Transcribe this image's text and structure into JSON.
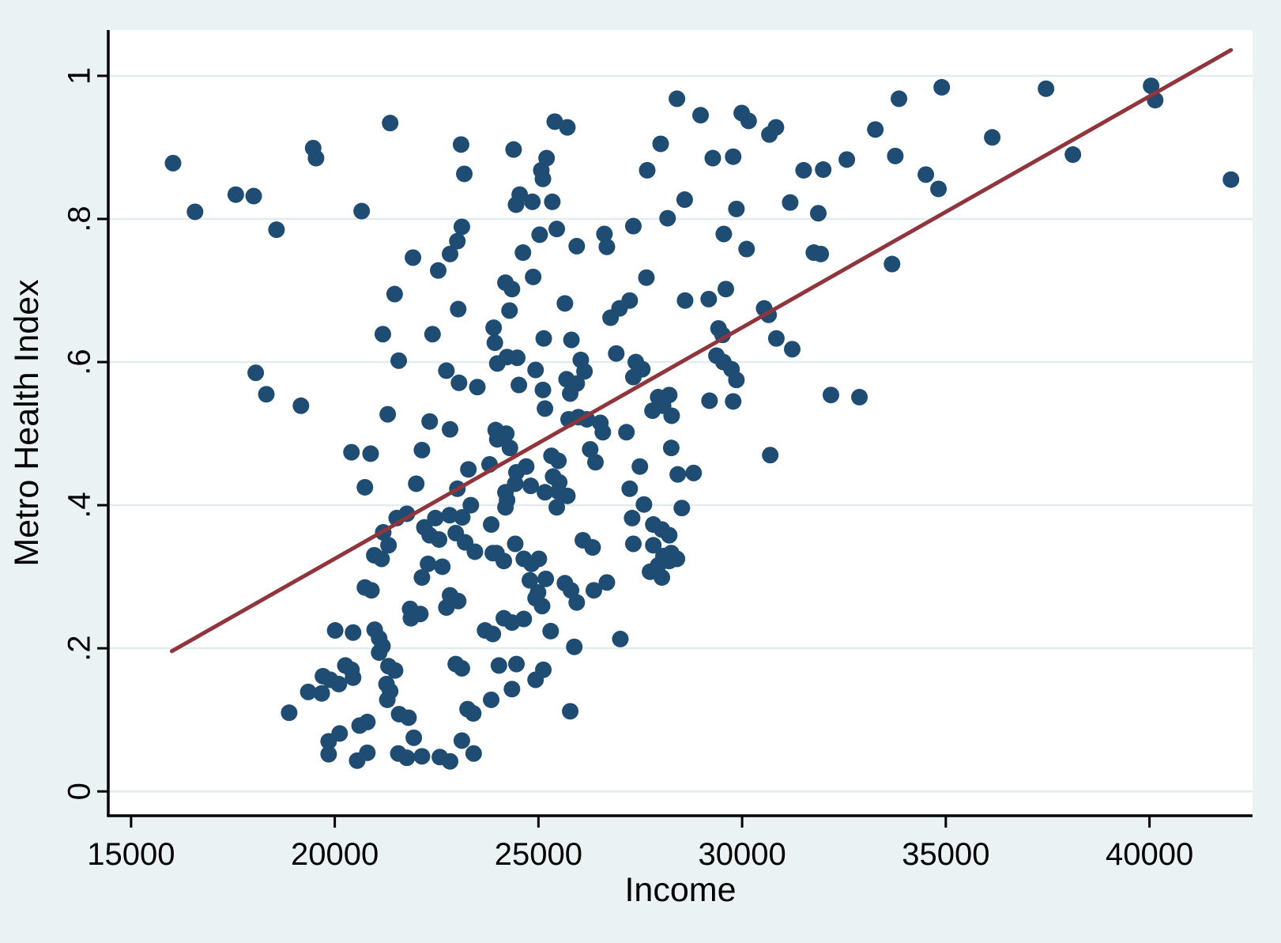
{
  "colors": {
    "canvas_background": "#eaf2f3",
    "plot_background": "#ffffff",
    "gridline": "#e2ecef",
    "axis": "#000000",
    "marker": "#1e4c72",
    "fit_line": "#90353b"
  },
  "chart_data": {
    "type": "scatter",
    "title": "",
    "xlabel": "Income",
    "ylabel": "Metro Health Index",
    "grid": true,
    "legend": "none",
    "xlim": [
      14440,
      42530
    ],
    "ylim": [
      -0.034,
      1.064
    ],
    "x_ticks": [
      15000,
      20000,
      25000,
      30000,
      35000,
      40000
    ],
    "x_tick_labels": [
      "15000",
      "20000",
      "25000",
      "30000",
      "35000",
      "40000"
    ],
    "y_ticks": [
      0,
      0.2,
      0.4,
      0.6,
      0.8,
      1
    ],
    "y_tick_labels": [
      "0",
      ".2",
      ".4",
      ".6",
      ".8",
      "1"
    ],
    "series": [
      {
        "name": "scatter-points",
        "type": "scatter",
        "marker_radius": 10.5,
        "points": [
          [
            16030,
            0.878
          ],
          [
            16570,
            0.81
          ],
          [
            17570,
            0.834
          ],
          [
            18010,
            0.832
          ],
          [
            18570,
            0.785
          ],
          [
            19470,
            0.899
          ],
          [
            19540,
            0.885
          ],
          [
            21360,
            0.934
          ],
          [
            20660,
            0.811
          ],
          [
            23100,
            0.904
          ],
          [
            23180,
            0.863
          ],
          [
            23120,
            0.789
          ],
          [
            23010,
            0.769
          ],
          [
            22830,
            0.751
          ],
          [
            22540,
            0.728
          ],
          [
            21920,
            0.746
          ],
          [
            28400,
            0.968
          ],
          [
            28980,
            0.945
          ],
          [
            29990,
            0.948
          ],
          [
            30160,
            0.937
          ],
          [
            30830,
            0.928
          ],
          [
            30670,
            0.918
          ],
          [
            25400,
            0.936
          ],
          [
            25710,
            0.928
          ],
          [
            24390,
            0.897
          ],
          [
            25200,
            0.885
          ],
          [
            25070,
            0.868
          ],
          [
            25110,
            0.856
          ],
          [
            28000,
            0.905
          ],
          [
            27670,
            0.868
          ],
          [
            29280,
            0.885
          ],
          [
            29780,
            0.887
          ],
          [
            31510,
            0.868
          ],
          [
            31990,
            0.869
          ],
          [
            32570,
            0.883
          ],
          [
            24540,
            0.834
          ],
          [
            24450,
            0.82
          ],
          [
            24850,
            0.824
          ],
          [
            25340,
            0.824
          ],
          [
            28590,
            0.827
          ],
          [
            29860,
            0.814
          ],
          [
            31180,
            0.823
          ],
          [
            31870,
            0.808
          ],
          [
            25450,
            0.786
          ],
          [
            25030,
            0.778
          ],
          [
            24620,
            0.753
          ],
          [
            25940,
            0.762
          ],
          [
            26620,
            0.779
          ],
          [
            26680,
            0.761
          ],
          [
            27330,
            0.79
          ],
          [
            28170,
            0.801
          ],
          [
            29550,
            0.779
          ],
          [
            30110,
            0.758
          ],
          [
            31760,
            0.753
          ],
          [
            31930,
            0.751
          ],
          [
            24190,
            0.711
          ],
          [
            24350,
            0.702
          ],
          [
            24870,
            0.719
          ],
          [
            27650,
            0.718
          ],
          [
            29600,
            0.702
          ],
          [
            33850,
            0.968
          ],
          [
            34900,
            0.984
          ],
          [
            37460,
            0.982
          ],
          [
            40040,
            0.986
          ],
          [
            40140,
            0.966
          ],
          [
            33270,
            0.925
          ],
          [
            36140,
            0.914
          ],
          [
            33760,
            0.888
          ],
          [
            34510,
            0.862
          ],
          [
            34820,
            0.842
          ],
          [
            38120,
            0.89
          ],
          [
            42000,
            0.855
          ],
          [
            33680,
            0.737
          ],
          [
            21470,
            0.695
          ],
          [
            23030,
            0.674
          ],
          [
            21180,
            0.639
          ],
          [
            22400,
            0.639
          ],
          [
            21570,
            0.602
          ],
          [
            18060,
            0.585
          ],
          [
            18320,
            0.555
          ],
          [
            19170,
            0.539
          ],
          [
            22740,
            0.588
          ],
          [
            23050,
            0.571
          ],
          [
            23500,
            0.565
          ],
          [
            21300,
            0.527
          ],
          [
            22330,
            0.517
          ],
          [
            22830,
            0.506
          ],
          [
            20410,
            0.474
          ],
          [
            20880,
            0.472
          ],
          [
            22140,
            0.477
          ],
          [
            20740,
            0.425
          ],
          [
            22000,
            0.43
          ],
          [
            23010,
            0.423
          ],
          [
            23340,
            0.4
          ],
          [
            23280,
            0.45
          ],
          [
            23800,
            0.457
          ],
          [
            21520,
            0.382
          ],
          [
            21770,
            0.388
          ],
          [
            22470,
            0.382
          ],
          [
            22820,
            0.386
          ],
          [
            23130,
            0.383
          ],
          [
            22200,
            0.369
          ],
          [
            22330,
            0.358
          ],
          [
            22560,
            0.352
          ],
          [
            22970,
            0.361
          ],
          [
            23200,
            0.348
          ],
          [
            23440,
            0.335
          ],
          [
            23840,
            0.373
          ],
          [
            23880,
            0.333
          ],
          [
            21190,
            0.362
          ],
          [
            21320,
            0.344
          ],
          [
            20970,
            0.33
          ],
          [
            21150,
            0.325
          ],
          [
            24290,
            0.672
          ],
          [
            25650,
            0.682
          ],
          [
            23900,
            0.648
          ],
          [
            23930,
            0.627
          ],
          [
            25130,
            0.633
          ],
          [
            25810,
            0.631
          ],
          [
            26910,
            0.612
          ],
          [
            24230,
            0.607
          ],
          [
            24480,
            0.606
          ],
          [
            23990,
            0.598
          ],
          [
            24930,
            0.589
          ],
          [
            26040,
            0.603
          ],
          [
            26130,
            0.587
          ],
          [
            25940,
            0.57
          ],
          [
            24520,
            0.568
          ],
          [
            25110,
            0.561
          ],
          [
            25690,
            0.576
          ],
          [
            25780,
            0.556
          ],
          [
            27390,
            0.6
          ],
          [
            27550,
            0.59
          ],
          [
            27330,
            0.579
          ],
          [
            27940,
            0.551
          ],
          [
            28210,
            0.554
          ],
          [
            27800,
            0.532
          ],
          [
            28060,
            0.539
          ],
          [
            28270,
            0.525
          ],
          [
            25160,
            0.535
          ],
          [
            25740,
            0.52
          ],
          [
            25980,
            0.523
          ],
          [
            26190,
            0.52
          ],
          [
            26520,
            0.515
          ],
          [
            26580,
            0.502
          ],
          [
            27160,
            0.502
          ],
          [
            29200,
            0.546
          ],
          [
            29780,
            0.545
          ],
          [
            29370,
            0.609
          ],
          [
            29540,
            0.6
          ],
          [
            29740,
            0.59
          ],
          [
            29860,
            0.575
          ],
          [
            29420,
            0.647
          ],
          [
            29520,
            0.638
          ],
          [
            30540,
            0.675
          ],
          [
            30650,
            0.666
          ],
          [
            30840,
            0.633
          ],
          [
            31230,
            0.618
          ],
          [
            30690,
            0.47
          ],
          [
            32180,
            0.554
          ],
          [
            32880,
            0.551
          ],
          [
            23950,
            0.505
          ],
          [
            24210,
            0.5
          ],
          [
            23990,
            0.492
          ],
          [
            24300,
            0.48
          ],
          [
            24460,
            0.446
          ],
          [
            24700,
            0.454
          ],
          [
            24190,
            0.418
          ],
          [
            24430,
            0.43
          ],
          [
            24810,
            0.427
          ],
          [
            25320,
            0.469
          ],
          [
            25490,
            0.462
          ],
          [
            25360,
            0.44
          ],
          [
            25510,
            0.432
          ],
          [
            26270,
            0.478
          ],
          [
            26400,
            0.46
          ],
          [
            27240,
            0.423
          ],
          [
            27490,
            0.454
          ],
          [
            28420,
            0.443
          ],
          [
            28810,
            0.445
          ],
          [
            28260,
            0.48
          ],
          [
            25160,
            0.418
          ],
          [
            25490,
            0.419
          ],
          [
            25710,
            0.413
          ],
          [
            25450,
            0.397
          ],
          [
            24230,
            0.407
          ],
          [
            24190,
            0.397
          ],
          [
            26090,
            0.351
          ],
          [
            26330,
            0.341
          ],
          [
            27300,
            0.382
          ],
          [
            27590,
            0.401
          ],
          [
            27820,
            0.373
          ],
          [
            28030,
            0.366
          ],
          [
            28210,
            0.358
          ],
          [
            28520,
            0.396
          ],
          [
            26770,
            0.662
          ],
          [
            26990,
            0.675
          ],
          [
            27240,
            0.686
          ],
          [
            28600,
            0.686
          ],
          [
            29180,
            0.688
          ],
          [
            24430,
            0.346
          ],
          [
            23970,
            0.333
          ],
          [
            24640,
            0.325
          ],
          [
            27330,
            0.346
          ],
          [
            27820,
            0.344
          ],
          [
            28070,
            0.329
          ],
          [
            28260,
            0.333
          ],
          [
            28400,
            0.325
          ],
          [
            25010,
            0.325
          ],
          [
            24150,
            0.322
          ],
          [
            24830,
            0.318
          ],
          [
            18880,
            0.11
          ],
          [
            19350,
            0.139
          ],
          [
            19680,
            0.137
          ],
          [
            19710,
            0.161
          ],
          [
            19890,
            0.156
          ],
          [
            20100,
            0.15
          ],
          [
            19850,
            0.07
          ],
          [
            19850,
            0.052
          ],
          [
            20120,
            0.081
          ],
          [
            20260,
            0.176
          ],
          [
            20410,
            0.17
          ],
          [
            20450,
            0.159
          ],
          [
            20450,
            0.222
          ],
          [
            20980,
            0.226
          ],
          [
            21090,
            0.214
          ],
          [
            20610,
            0.092
          ],
          [
            20800,
            0.097
          ],
          [
            20550,
            0.043
          ],
          [
            20800,
            0.054
          ],
          [
            21170,
            0.203
          ],
          [
            21090,
            0.194
          ],
          [
            21320,
            0.175
          ],
          [
            21480,
            0.169
          ],
          [
            21270,
            0.15
          ],
          [
            21360,
            0.14
          ],
          [
            21290,
            0.128
          ],
          [
            21580,
            0.108
          ],
          [
            21810,
            0.103
          ],
          [
            21560,
            0.053
          ],
          [
            21770,
            0.047
          ],
          [
            21940,
            0.075
          ],
          [
            21850,
            0.255
          ],
          [
            21870,
            0.242
          ],
          [
            22100,
            0.248
          ],
          [
            22140,
            0.299
          ],
          [
            22290,
            0.318
          ],
          [
            22640,
            0.314
          ],
          [
            22830,
            0.274
          ],
          [
            23030,
            0.266
          ],
          [
            22740,
            0.257
          ],
          [
            22970,
            0.178
          ],
          [
            23120,
            0.172
          ],
          [
            23260,
            0.115
          ],
          [
            23400,
            0.109
          ],
          [
            23690,
            0.225
          ],
          [
            23880,
            0.22
          ],
          [
            23120,
            0.071
          ],
          [
            22140,
            0.049
          ],
          [
            22580,
            0.048
          ],
          [
            22830,
            0.042
          ],
          [
            23410,
            0.053
          ],
          [
            23840,
            0.128
          ],
          [
            20740,
            0.285
          ],
          [
            20900,
            0.281
          ],
          [
            20010,
            0.225
          ],
          [
            24790,
            0.295
          ],
          [
            25180,
            0.297
          ],
          [
            24990,
            0.278
          ],
          [
            24930,
            0.27
          ],
          [
            25090,
            0.259
          ],
          [
            25650,
            0.291
          ],
          [
            25800,
            0.281
          ],
          [
            25940,
            0.264
          ],
          [
            26360,
            0.281
          ],
          [
            26680,
            0.292
          ],
          [
            27740,
            0.307
          ],
          [
            27940,
            0.316
          ],
          [
            28030,
            0.299
          ],
          [
            28210,
            0.322
          ],
          [
            24150,
            0.242
          ],
          [
            24350,
            0.236
          ],
          [
            24640,
            0.241
          ],
          [
            25300,
            0.224
          ],
          [
            25880,
            0.202
          ],
          [
            27010,
            0.213
          ],
          [
            24030,
            0.176
          ],
          [
            24460,
            0.178
          ],
          [
            25120,
            0.17
          ],
          [
            24930,
            0.156
          ],
          [
            24350,
            0.143
          ],
          [
            25780,
            0.112
          ]
        ]
      },
      {
        "name": "fitted-line",
        "type": "line",
        "line_width": 5,
        "x": [
          16000,
          42000
        ],
        "y": [
          0.196,
          1.036
        ]
      }
    ]
  }
}
